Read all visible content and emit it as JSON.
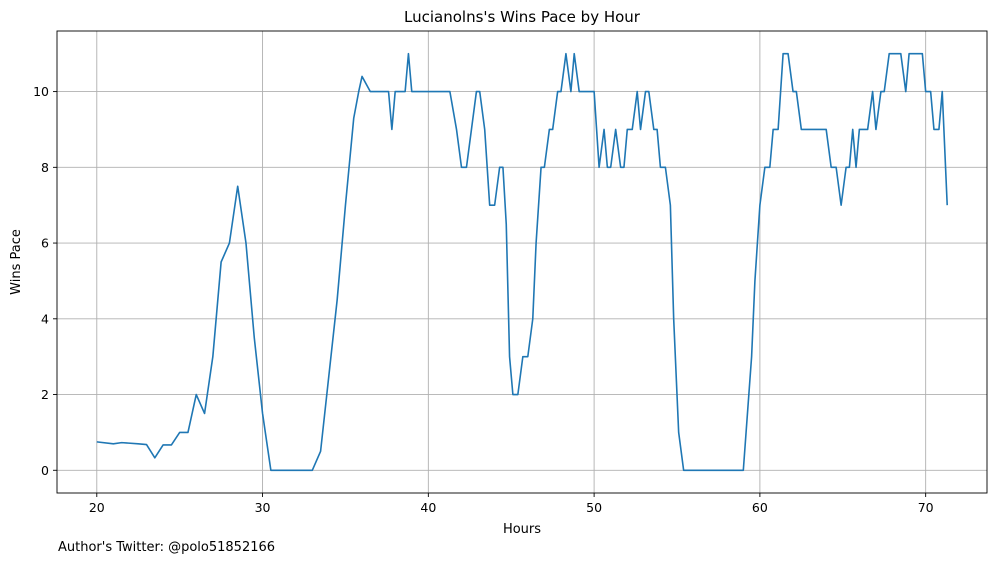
{
  "chart_data": {
    "type": "line",
    "title": "Lucianolns's Wins Pace by Hour",
    "xlabel": "Hours",
    "ylabel": "Wins Pace",
    "xlim": [
      17.6,
      73.7
    ],
    "ylim": [
      -0.6,
      11.6
    ],
    "xticks": [
      20,
      30,
      40,
      50,
      60,
      70
    ],
    "yticks": [
      0,
      2,
      4,
      6,
      8,
      10
    ],
    "grid": true,
    "series": [
      {
        "color": "#1f77b4",
        "x": [
          20.0,
          21.0,
          21.5,
          22.5,
          23.0,
          23.5,
          24.0,
          24.5,
          25.0,
          25.5,
          26.0,
          26.5,
          27.0,
          27.5,
          28.0,
          28.5,
          29.0,
          29.5,
          30.0,
          30.5,
          31.0,
          32.0,
          33.0,
          33.5,
          34.0,
          34.5,
          35.0,
          35.5,
          35.8,
          36.0,
          36.5,
          37.0,
          37.3,
          37.6,
          37.8,
          38.0,
          38.3,
          38.6,
          38.8,
          39.0,
          39.5,
          40.0,
          40.5,
          41.0,
          41.3,
          41.7,
          42.0,
          42.3,
          42.6,
          42.9,
          43.1,
          43.4,
          43.7,
          44.0,
          44.3,
          44.5,
          44.7,
          44.9,
          45.1,
          45.4,
          45.7,
          46.0,
          46.3,
          46.5,
          46.8,
          47.0,
          47.3,
          47.5,
          47.8,
          48.0,
          48.3,
          48.6,
          48.8,
          49.1,
          49.3,
          49.6,
          49.8,
          50.0,
          50.3,
          50.6,
          50.8,
          51.0,
          51.3,
          51.6,
          51.8,
          52.0,
          52.3,
          52.6,
          52.8,
          53.1,
          53.3,
          53.6,
          53.8,
          54.0,
          54.3,
          54.6,
          54.8,
          55.1,
          55.4,
          55.7,
          56.0,
          56.3,
          57.0,
          58.0,
          59.0,
          59.5,
          59.7,
          60.0,
          60.3,
          60.6,
          60.8,
          61.1,
          61.4,
          61.7,
          62.0,
          62.2,
          62.5,
          62.8,
          63.1,
          63.5,
          63.8,
          64.0,
          64.3,
          64.6,
          64.9,
          65.2,
          65.4,
          65.6,
          65.8,
          66.0,
          66.2,
          66.5,
          66.8,
          67.0,
          67.3,
          67.5,
          67.8,
          68.0,
          68.3,
          68.5,
          68.8,
          69.0,
          69.3,
          69.5,
          69.8,
          70.0,
          70.3,
          70.5,
          70.8,
          71.0,
          71.3
        ],
        "y": [
          0.75,
          0.7,
          0.73,
          0.7,
          0.68,
          0.33,
          0.67,
          0.67,
          1.0,
          1.0,
          2.0,
          1.5,
          3.0,
          5.5,
          6.0,
          7.5,
          6.0,
          3.5,
          1.5,
          0.0,
          0.0,
          0.0,
          0.0,
          0.5,
          2.5,
          4.5,
          7.0,
          9.3,
          10.0,
          10.4,
          10.0,
          10.0,
          10.0,
          10.0,
          9.0,
          10.0,
          10.0,
          10.0,
          11.0,
          10.0,
          10.0,
          10.0,
          10.0,
          10.0,
          10.0,
          9.0,
          8.0,
          8.0,
          9.0,
          10.0,
          10.0,
          9.0,
          7.0,
          7.0,
          8.0,
          8.0,
          6.5,
          3.0,
          2.0,
          2.0,
          3.0,
          3.0,
          4.0,
          6.0,
          8.0,
          8.0,
          9.0,
          9.0,
          10.0,
          10.0,
          11.0,
          10.0,
          11.0,
          10.0,
          10.0,
          10.0,
          10.0,
          10.0,
          8.0,
          9.0,
          8.0,
          8.0,
          9.0,
          8.0,
          8.0,
          9.0,
          9.0,
          10.0,
          9.0,
          10.0,
          10.0,
          9.0,
          9.0,
          8.0,
          8.0,
          7.0,
          4.0,
          1.0,
          0.0,
          0.0,
          0.0,
          0.0,
          0.0,
          0.0,
          0.0,
          3.0,
          5.0,
          7.0,
          8.0,
          8.0,
          9.0,
          9.0,
          11.0,
          11.0,
          10.0,
          10.0,
          9.0,
          9.0,
          9.0,
          9.0,
          9.0,
          9.0,
          8.0,
          8.0,
          7.0,
          8.0,
          8.0,
          9.0,
          8.0,
          9.0,
          9.0,
          9.0,
          10.0,
          9.0,
          10.0,
          10.0,
          11.0,
          11.0,
          11.0,
          11.0,
          10.0,
          11.0,
          11.0,
          11.0,
          11.0,
          10.0,
          10.0,
          9.0,
          9.0,
          10.0,
          7.0
        ]
      }
    ]
  },
  "footer": {
    "credit": "Author's Twitter: @polo51852166"
  }
}
